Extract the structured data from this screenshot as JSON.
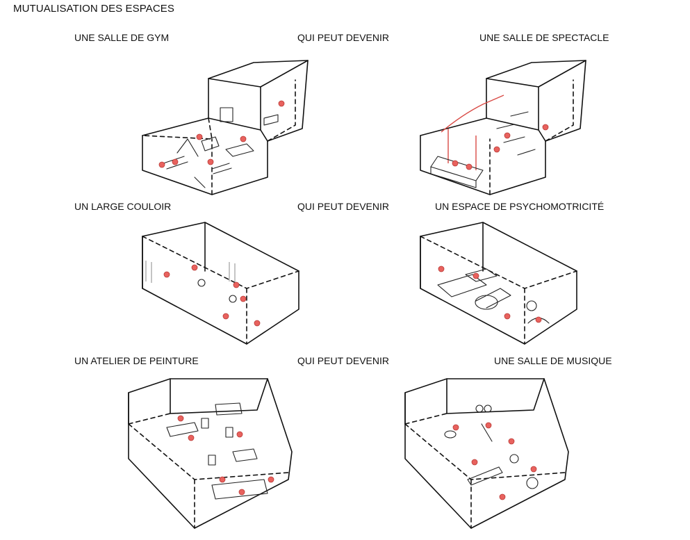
{
  "title": "MUTUALISATION DES ESPACES",
  "rows": [
    {
      "left": "UNE SALLE DE GYM",
      "middle": "QUI PEUT DEVENIR",
      "right": "UNE SALLE DE SPECTACLE"
    },
    {
      "left": "UN LARGE COULOIR",
      "middle": "QUI PEUT DEVENIR",
      "right": "UN ESPACE DE PSYCHOMOTRICITÉ"
    },
    {
      "left": "UN ATELIER DE PEINTURE",
      "middle": "QUI PEUT DEVENIR",
      "right": "UNE SALLE DE MUSIQUE"
    }
  ],
  "colors": {
    "figures": "#e8625e",
    "lines": "#111111",
    "background": "#ffffff"
  },
  "icons": [
    "gym-room-sketch",
    "theatre-room-sketch",
    "corridor-sketch",
    "psychomotor-room-sketch",
    "painting-workshop-sketch",
    "music-room-sketch"
  ]
}
